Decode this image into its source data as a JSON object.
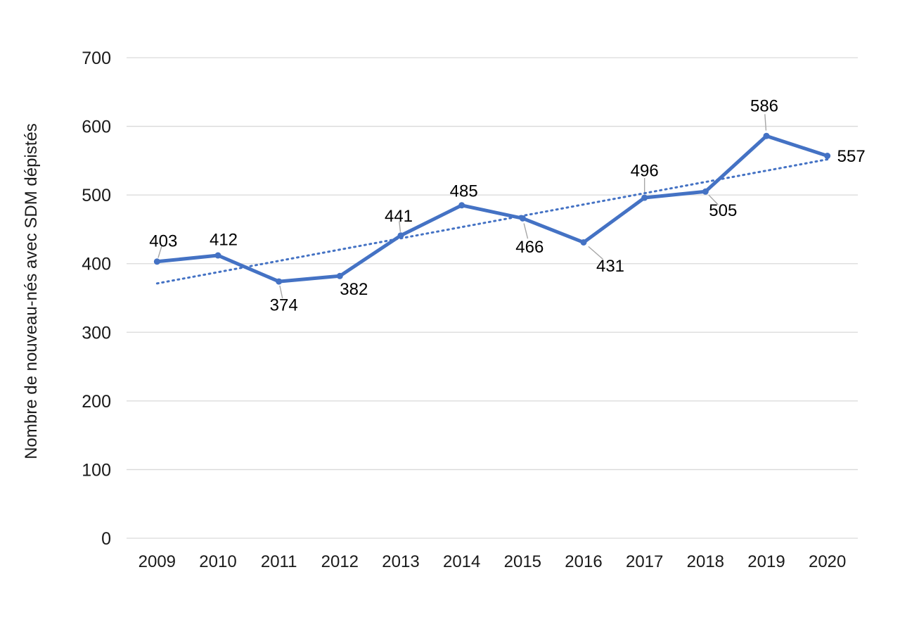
{
  "chart_data": {
    "type": "line",
    "title": "",
    "xlabel": "",
    "ylabel": "Nombre de nouveau-nés avec SDM dépistés",
    "categories": [
      "2009",
      "2010",
      "2011",
      "2012",
      "2013",
      "2014",
      "2015",
      "2016",
      "2017",
      "2018",
      "2019",
      "2020"
    ],
    "series": [
      {
        "values": [
          403,
          412,
          374,
          382,
          441,
          485,
          466,
          431,
          496,
          505,
          586,
          557
        ],
        "color": "#4472C4",
        "markers": true,
        "data_labels_visible": true
      }
    ],
    "trendline": {
      "type": "linear_regression",
      "style": "dotted",
      "color": "#4472C4"
    },
    "ylim": [
      0,
      700
    ],
    "yticks": [
      0,
      100,
      200,
      300,
      400,
      500,
      600,
      700
    ],
    "grid": "horizontal",
    "legend": "none",
    "colors": {
      "gridline": "#D9D9D9",
      "leader_line": "#A6A6A6",
      "tick_text": "#1A1A1A",
      "data_label_text": "#000000",
      "background": "#FFFFFF"
    }
  }
}
